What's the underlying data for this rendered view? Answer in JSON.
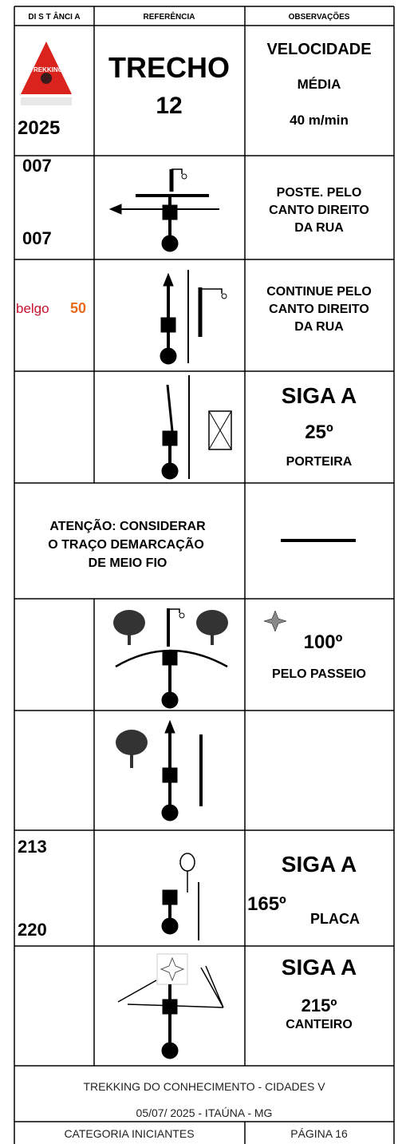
{
  "header": {
    "distance": "DI S T ÂNCI A",
    "reference": "REFERÊNCIA",
    "observations": "OBSERVAÇÕES"
  },
  "rows": [
    {
      "logo": "TREKKING",
      "distance": [
        "2025"
      ],
      "reference": [
        "TRECHO",
        "12"
      ],
      "observations": [
        "VELOCIDADE",
        "MÉDIA",
        "40 m/min"
      ]
    },
    {
      "distance": [
        "007",
        "007"
      ],
      "observations": [
        "POSTE. PELO",
        "CANTO DIREITO",
        "DA RUA"
      ]
    },
    {
      "logo": [
        "belgo",
        "50"
      ],
      "observations": [
        "CONTINUE PELO",
        "CANTO DIREITO",
        "DA RUA"
      ]
    },
    {
      "observations": [
        "SIGA A",
        "25º",
        "PORTEIRA"
      ]
    },
    {
      "note": [
        "ATENÇÃO:  CONSIDERAR",
        "O TRAÇO DEMARCAÇÃO",
        "DE MEIO FIO"
      ]
    },
    {
      "observations": [
        "100º",
        "PELO PASSEIO"
      ]
    },
    {
      "distance": [
        "213",
        "220"
      ],
      "observations": [
        "SIGA A",
        "165º",
        "PLACA"
      ]
    },
    {
      "observations": [
        "SIGA A",
        "215º",
        "CANTEIRO"
      ]
    }
  ],
  "footer": {
    "event": "TREKKING DO CONHECIMENTO - CIDADES V",
    "date": "05/07/ 2025 - ITAÚNA - MG",
    "category": "CATEGORIA INICIANTES",
    "page": "PÁGINA 16"
  }
}
